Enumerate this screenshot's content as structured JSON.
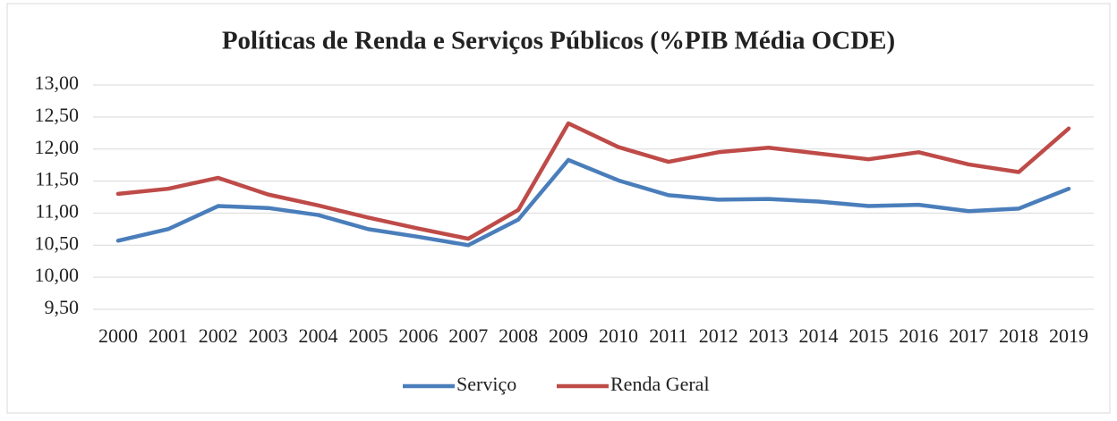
{
  "chart_data": {
    "type": "line",
    "title": "Políticas de Renda e Serviços Públicos (%PIB Média OCDE)",
    "categories": [
      "2000",
      "2001",
      "2002",
      "2003",
      "2004",
      "2005",
      "2006",
      "2007",
      "2008",
      "2009",
      "2010",
      "2011",
      "2012",
      "2013",
      "2014",
      "2015",
      "2016",
      "2017",
      "2018",
      "2019"
    ],
    "series": [
      {
        "name": "Serviço",
        "color": "#4a7ebb",
        "values": [
          10.57,
          10.75,
          11.11,
          11.08,
          10.97,
          10.75,
          10.63,
          10.5,
          10.9,
          11.83,
          11.51,
          11.28,
          11.21,
          11.22,
          11.18,
          11.11,
          11.13,
          11.03,
          11.07,
          11.38
        ]
      },
      {
        "name": "Renda Geral",
        "color": "#be4b48",
        "values": [
          11.3,
          11.38,
          11.55,
          11.29,
          11.12,
          10.93,
          10.76,
          10.6,
          11.05,
          12.4,
          12.03,
          11.8,
          11.95,
          12.02,
          11.93,
          11.84,
          11.95,
          11.76,
          11.64,
          12.32
        ]
      }
    ],
    "ylim": [
      9.5,
      13
    ],
    "yticks": [
      {
        "value": 9.5,
        "label": "9,50"
      },
      {
        "value": 10,
        "label": "10,00"
      },
      {
        "value": 10.5,
        "label": "10,50"
      },
      {
        "value": 11,
        "label": "11,00"
      },
      {
        "value": 11.5,
        "label": "11,50"
      },
      {
        "value": 12,
        "label": "12,00"
      },
      {
        "value": 12.5,
        "label": "12,50"
      },
      {
        "value": 13,
        "label": "13,00"
      }
    ],
    "grid": true,
    "legend": "bottom"
  }
}
